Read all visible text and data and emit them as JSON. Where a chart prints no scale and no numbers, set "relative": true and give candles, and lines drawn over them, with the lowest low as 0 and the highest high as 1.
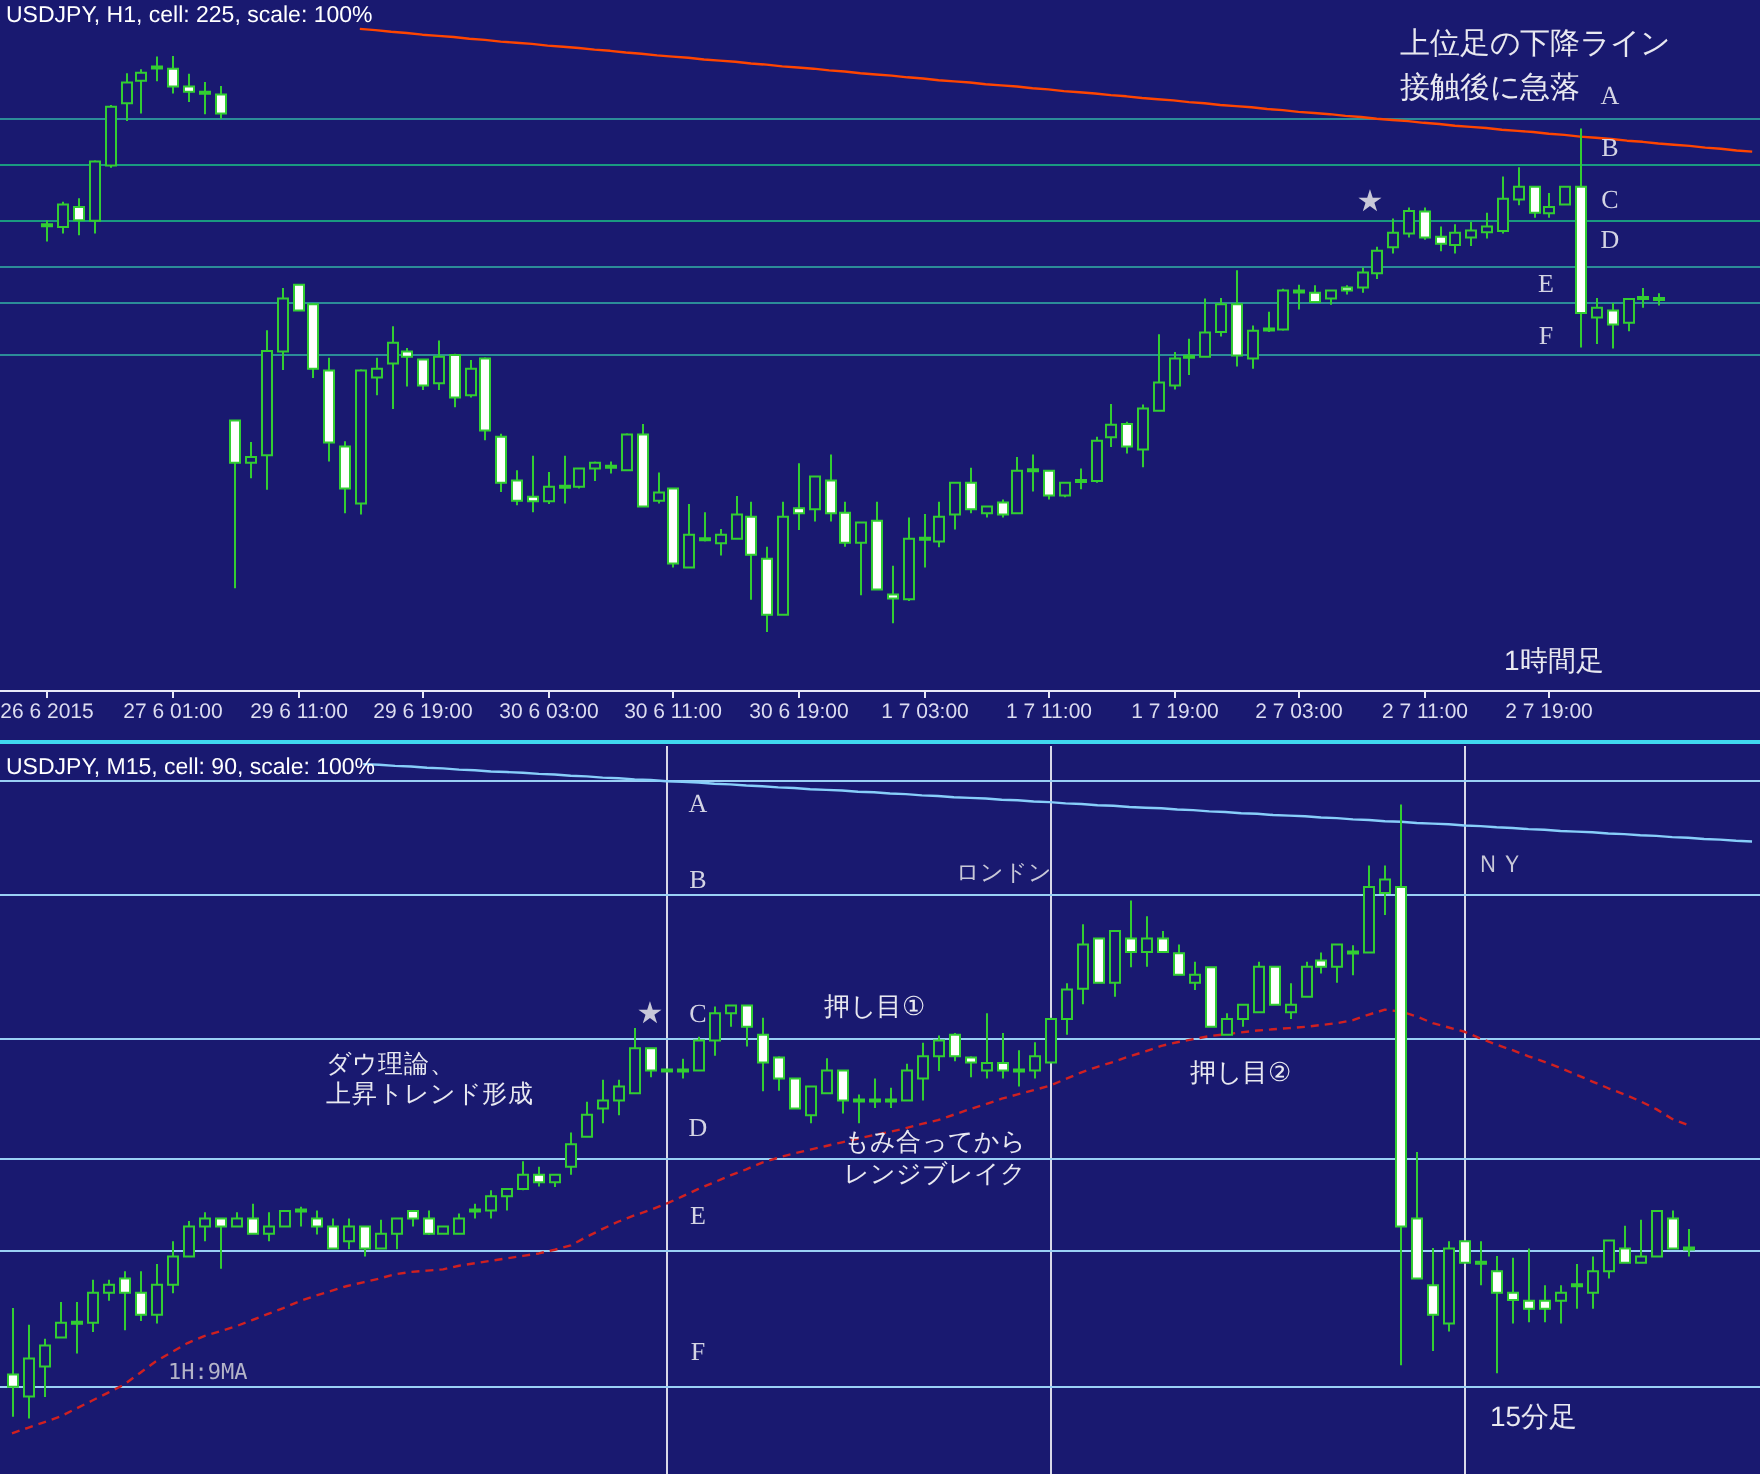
{
  "chart_data": [
    {
      "type": "candlestick",
      "title": "USDJPY, H1, cell: 225, scale: 100%",
      "relative": true,
      "tick_labels": "x",
      "categories": [
        "26 6 2015",
        null,
        null,
        null,
        null,
        null,
        null,
        null,
        "27 6 01:00",
        null,
        null,
        null,
        null,
        null,
        null,
        null,
        "29 6 11:00",
        null,
        null,
        null,
        null,
        null,
        null,
        null,
        "29 6 19:00",
        null,
        null,
        null,
        null,
        null,
        null,
        null,
        "30 6 03:00",
        null,
        null,
        null,
        null,
        null,
        null,
        null,
        "30 6 11:00",
        null,
        null,
        null,
        null,
        null,
        null,
        null,
        "30 6 19:00",
        null,
        null,
        null,
        null,
        null,
        null,
        null,
        "1 7 03:00",
        null,
        null,
        null,
        null,
        null,
        null,
        null,
        "1 7 11:00",
        null,
        null,
        null,
        null,
        null,
        null,
        null,
        "1 7 19:00",
        null,
        null,
        null,
        null,
        null,
        null,
        null,
        "2 7 03:00",
        null,
        null,
        null,
        null,
        null,
        null,
        null,
        "2 7 11:00",
        null,
        null,
        null,
        null,
        null,
        null,
        null,
        "2 7 19:00",
        null,
        null,
        null,
        null,
        null,
        null,
        null,
        null,
        null,
        null,
        null,
        null,
        null
      ],
      "series": [
        {
          "color": "#32cd32",
          "ohlc": [
            [
              0.706,
              0.715,
              0.678,
              0.706
            ],
            [
              0.703,
              0.747,
              0.692,
              0.742
            ],
            [
              0.738,
              0.753,
              0.689,
              0.715
            ],
            [
              0.714,
              0.819,
              0.692,
              0.817
            ],
            [
              0.81,
              0.915,
              0.806,
              0.912
            ],
            [
              0.918,
              0.97,
              0.887,
              0.954
            ],
            [
              0.957,
              0.977,
              0.9,
              0.971
            ],
            [
              0.979,
              0.999,
              0.956,
              0.981
            ],
            [
              0.978,
              1,
              0.935,
              0.947
            ],
            [
              0.947,
              0.969,
              0.92,
              0.938
            ],
            [
              0.936,
              0.955,
              0.899,
              0.936
            ],
            [
              0.933,
              0.948,
              0.891,
              0.9
            ],
            [
              0.367,
              0.367,
              0.076,
              0.294
            ],
            [
              0.294,
              0.33,
              0.267,
              0.304
            ],
            [
              0.307,
              0.524,
              0.247,
              0.488
            ],
            [
              0.487,
              0.597,
              0.455,
              0.579
            ],
            [
              0.603,
              0.604,
              0.557,
              0.558
            ],
            [
              0.569,
              0.571,
              0.441,
              0.457
            ],
            [
              0.454,
              0.476,
              0.296,
              0.329
            ],
            [
              0.322,
              0.331,
              0.206,
              0.249
            ],
            [
              0.223,
              0.456,
              0.204,
              0.454
            ],
            [
              0.442,
              0.476,
              0.411,
              0.457
            ],
            [
              0.466,
              0.531,
              0.387,
              0.502
            ],
            [
              0.487,
              0.493,
              0.426,
              0.478
            ],
            [
              0.473,
              0.475,
              0.42,
              0.428
            ],
            [
              0.432,
              0.506,
              0.42,
              0.478
            ],
            [
              0.481,
              0.483,
              0.39,
              0.407
            ],
            [
              0.411,
              0.472,
              0.407,
              0.457
            ],
            [
              0.475,
              0.477,
              0.333,
              0.35
            ],
            [
              0.339,
              0.344,
              0.243,
              0.259
            ],
            [
              0.263,
              0.281,
              0.22,
              0.228
            ],
            [
              0.235,
              0.306,
              0.208,
              0.227
            ],
            [
              0.227,
              0.278,
              0.222,
              0.252
            ],
            [
              0.252,
              0.306,
              0.223,
              0.252
            ],
            [
              0.252,
              0.285,
              0.249,
              0.284
            ],
            [
              0.284,
              0.296,
              0.262,
              0.294
            ],
            [
              0.287,
              0.296,
              0.275,
              0.287
            ],
            [
              0.281,
              0.345,
              0.279,
              0.343
            ],
            [
              0.343,
              0.361,
              0.216,
              0.218
            ],
            [
              0.228,
              0.277,
              0.223,
              0.242
            ],
            [
              0.249,
              0.25,
              0.112,
              0.119
            ],
            [
              0.112,
              0.222,
              0.111,
              0.169
            ],
            [
              0.161,
              0.208,
              0.157,
              0.161
            ],
            [
              0.154,
              0.179,
              0.133,
              0.169
            ],
            [
              0.162,
              0.236,
              0.161,
              0.204
            ],
            [
              0.2,
              0.226,
              0.056,
              0.134
            ],
            [
              0.127,
              0.148,
              0,
              0.03
            ],
            [
              0.03,
              0.226,
              0.029,
              0.2
            ],
            [
              0.215,
              0.293,
              0.177,
              0.206
            ],
            [
              0.213,
              0.271,
              0.192,
              0.27
            ],
            [
              0.263,
              0.308,
              0.192,
              0.206
            ],
            [
              0.207,
              0.226,
              0.148,
              0.155
            ],
            [
              0.155,
              0.191,
              0.064,
              0.19
            ],
            [
              0.193,
              0.226,
              0.073,
              0.074
            ],
            [
              0.065,
              0.115,
              0.015,
              0.058
            ],
            [
              0.057,
              0.199,
              0.054,
              0.162
            ],
            [
              0.162,
              0.205,
              0.112,
              0.162
            ],
            [
              0.157,
              0.226,
              0.147,
              0.2
            ],
            [
              0.204,
              0.26,
              0.178,
              0.259
            ],
            [
              0.259,
              0.285,
              0.206,
              0.213
            ],
            [
              0.206,
              0.219,
              0.199,
              0.218
            ],
            [
              0.225,
              0.23,
              0.199,
              0.204
            ],
            [
              0.206,
              0.304,
              0.205,
              0.28
            ],
            [
              0.281,
              0.308,
              0.244,
              0.281
            ],
            [
              0.28,
              0.281,
              0.23,
              0.237
            ],
            [
              0.237,
              0.26,
              0.234,
              0.259
            ],
            [
              0.262,
              0.284,
              0.248,
              0.262
            ],
            [
              0.262,
              0.339,
              0.259,
              0.332
            ],
            [
              0.338,
              0.396,
              0.321,
              0.36
            ],
            [
              0.361,
              0.365,
              0.31,
              0.322
            ],
            [
              0.317,
              0.395,
              0.286,
              0.388
            ],
            [
              0.384,
              0.517,
              0.383,
              0.433
            ],
            [
              0.428,
              0.486,
              0.421,
              0.475
            ],
            [
              0.478,
              0.509,
              0.446,
              0.478
            ],
            [
              0.478,
              0.579,
              0.476,
              0.52
            ],
            [
              0.521,
              0.58,
              0.513,
              0.569
            ],
            [
              0.569,
              0.628,
              0.461,
              0.48
            ],
            [
              0.475,
              0.532,
              0.457,
              0.523
            ],
            [
              0.525,
              0.556,
              0.521,
              0.525
            ],
            [
              0.525,
              0.596,
              0.523,
              0.593
            ],
            [
              0.591,
              0.603,
              0.56,
              0.591
            ],
            [
              0.589,
              0.602,
              0.571,
              0.573
            ],
            [
              0.579,
              0.594,
              0.568,
              0.593
            ],
            [
              0.598,
              0.602,
              0.586,
              0.593
            ],
            [
              0.598,
              0.633,
              0.589,
              0.624
            ],
            [
              0.623,
              0.669,
              0.613,
              0.662
            ],
            [
              0.668,
              0.718,
              0.657,
              0.693
            ],
            [
              0.692,
              0.737,
              0.685,
              0.731
            ],
            [
              0.73,
              0.737,
              0.681,
              0.685
            ],
            [
              0.686,
              0.704,
              0.661,
              0.674
            ],
            [
              0.672,
              0.708,
              0.657,
              0.693
            ],
            [
              0.685,
              0.712,
              0.67,
              0.697
            ],
            [
              0.694,
              0.728,
              0.683,
              0.704
            ],
            [
              0.696,
              0.791,
              0.692,
              0.752
            ],
            [
              0.751,
              0.807,
              0.741,
              0.773
            ],
            [
              0.773,
              0.774,
              0.719,
              0.728
            ],
            [
              0.727,
              0.762,
              0.719,
              0.738
            ],
            [
              0.742,
              0.774,
              0.741,
              0.773
            ],
            [
              0.773,
              0.874,
              0.494,
              0.554
            ],
            [
              0.546,
              0.58,
              0.5,
              0.563
            ],
            [
              0.558,
              0.571,
              0.492,
              0.534
            ],
            [
              0.537,
              0.579,
              0.522,
              0.578
            ],
            [
              0.58,
              0.597,
              0.563,
              0.58
            ],
            [
              0.578,
              0.588,
              0.567,
              0.578
            ],
            null,
            null,
            null,
            null,
            null,
            null
          ]
        },
        {
          "type": "line",
          "color": "#ff4500",
          "values": [
            null,
            null,
            null,
            null,
            null,
            null,
            null,
            null,
            null,
            null,
            null,
            null,
            null,
            null,
            null,
            null,
            null,
            null,
            null,
            null,
            1.047,
            1.045,
            1.042,
            1.04,
            1.037,
            1.035,
            1.033,
            1.03,
            1.028,
            1.025,
            1.023,
            1.021,
            1.018,
            1.016,
            1.014,
            1.011,
            1.009,
            1.006,
            1.004,
            1.001,
            0.999,
            0.997,
            0.994,
            0.992,
            0.99,
            0.987,
            0.985,
            0.982,
            0.98,
            0.978,
            0.975,
            0.973,
            0.97,
            0.968,
            0.966,
            0.963,
            0.961,
            0.958,
            0.956,
            0.954,
            0.951,
            0.949,
            0.947,
            0.944,
            0.942,
            0.939,
            0.937,
            0.935,
            0.932,
            0.93,
            0.927,
            0.925,
            0.923,
            0.92,
            0.918,
            0.915,
            0.913,
            0.911,
            0.908,
            0.906,
            0.903,
            0.901,
            0.899,
            0.896,
            0.894,
            0.891,
            0.889,
            0.887,
            0.884,
            0.882,
            0.879,
            0.877,
            0.875,
            0.872,
            0.87,
            0.868,
            0.865,
            0.863,
            0.86,
            0.858,
            0.856,
            0.853,
            0.851,
            0.848,
            0.846,
            0.844,
            0.841,
            0.839,
            0.836,
            0.834
          ]
        }
      ],
      "ref_lines": [
        {
          "axis": "y",
          "value": 0.891,
          "label": "A",
          "color": "#2c8c98"
        },
        {
          "axis": "y",
          "value": 0.811,
          "label": "B",
          "color": "#1a9a80"
        },
        {
          "axis": "y",
          "value": 0.714,
          "label": "C",
          "color": "#1a9a80"
        },
        {
          "axis": "y",
          "value": 0.634,
          "label": "D",
          "color": "#2c8c98"
        },
        {
          "axis": "y",
          "value": 0.572,
          "label": "E",
          "color": "#2c8c98"
        },
        {
          "axis": "y",
          "value": 0.481,
          "label": "F",
          "color": "#2c8c98"
        }
      ],
      "annotations": [
        "上位足の下降ライン",
        "接触後に急落",
        "1時間足",
        "★"
      ]
    },
    {
      "type": "candlestick",
      "title": "USDJPY, M15, cell: 90, scale: 100%",
      "relative": true,
      "tick_labels": false,
      "grid": "x",
      "categories": [
        null,
        null,
        null,
        null,
        null,
        null,
        null,
        null,
        null,
        null,
        null,
        null,
        null,
        null,
        null,
        null,
        null,
        null,
        null,
        null,
        null,
        null,
        null,
        null,
        null,
        null,
        null,
        null,
        null,
        null,
        null,
        null,
        null,
        null,
        null,
        null,
        null,
        null,
        null,
        null,
        null,
        null,
        null,
        null,
        null,
        null,
        null,
        null,
        null,
        null,
        null,
        null,
        null,
        null,
        null,
        null,
        null,
        null,
        null,
        null,
        null,
        null,
        null,
        null,
        null,
        null,
        null,
        null,
        null,
        null,
        null,
        null,
        null,
        null,
        null,
        null,
        null,
        null,
        null,
        null,
        null,
        null,
        null,
        null,
        null,
        null,
        null,
        null,
        null,
        null,
        null,
        null,
        null,
        null,
        null,
        null,
        null,
        null,
        null,
        null,
        null,
        null,
        null,
        null,
        null,
        null,
        null,
        null,
        null,
        null
      ],
      "series": [
        {
          "color": "#32cd32",
          "ohlc": [
            [
              0.072,
              0.18,
              0.003,
              0.052
            ],
            [
              0.036,
              0.153,
              0,
              0.098
            ],
            [
              0.085,
              0.13,
              0.035,
              0.119
            ],
            [
              0.132,
              0.19,
              0.131,
              0.156
            ],
            [
              0.156,
              0.19,
              0.106,
              0.156
            ],
            [
              0.156,
              0.226,
              0.141,
              0.205
            ],
            [
              0.205,
              0.226,
              0.192,
              0.218
            ],
            [
              0.228,
              0.24,
              0.144,
              0.205
            ],
            [
              0.205,
              0.24,
              0.159,
              0.169
            ],
            [
              0.169,
              0.252,
              0.155,
              0.218
            ],
            [
              0.218,
              0.289,
              0.204,
              0.264
            ],
            [
              0.264,
              0.322,
              0.263,
              0.313
            ],
            [
              0.313,
              0.336,
              0.289,
              0.326
            ],
            [
              0.326,
              0.327,
              0.244,
              0.313
            ],
            [
              0.313,
              0.336,
              0.312,
              0.326
            ],
            [
              0.326,
              0.35,
              0.3,
              0.301
            ],
            [
              0.301,
              0.336,
              0.289,
              0.313
            ],
            [
              0.313,
              0.339,
              0.312,
              0.338
            ],
            [
              0.339,
              0.345,
              0.313,
              0.339
            ],
            [
              0.326,
              0.339,
              0.3,
              0.313
            ],
            [
              0.313,
              0.326,
              0.276,
              0.277
            ],
            [
              0.289,
              0.326,
              0.276,
              0.313
            ],
            [
              0.313,
              0.314,
              0.264,
              0.277
            ],
            [
              0.277,
              0.324,
              0.276,
              0.301
            ],
            [
              0.301,
              0.327,
              0.276,
              0.326
            ],
            [
              0.338,
              0.339,
              0.313,
              0.326
            ],
            [
              0.326,
              0.339,
              0.299,
              0.301
            ],
            [
              0.301,
              0.313,
              0.301,
              0.313
            ],
            [
              0.301,
              0.334,
              0.3,
              0.326
            ],
            [
              0.339,
              0.35,
              0.326,
              0.339
            ],
            [
              0.339,
              0.372,
              0.326,
              0.362
            ],
            [
              0.362,
              0.375,
              0.339,
              0.374
            ],
            [
              0.374,
              0.419,
              0.372,
              0.397
            ],
            [
              0.397,
              0.41,
              0.378,
              0.385
            ],
            [
              0.385,
              0.398,
              0.377,
              0.397
            ],
            [
              0.41,
              0.466,
              0.397,
              0.447
            ],
            [
              0.459,
              0.516,
              0.458,
              0.495
            ],
            [
              0.505,
              0.552,
              0.481,
              0.518
            ],
            [
              0.518,
              0.552,
              0.494,
              0.541
            ],
            [
              0.53,
              0.636,
              0.529,
              0.603
            ],
            [
              0.603,
              0.604,
              0.556,
              0.567
            ],
            [
              0.567,
              0.568,
              0.566,
              0.567
            ],
            [
              0.567,
              0.586,
              0.554,
              0.567
            ],
            [
              0.567,
              0.622,
              0.566,
              0.616
            ],
            [
              0.616,
              0.671,
              0.591,
              0.66
            ],
            [
              0.66,
              0.674,
              0.638,
              0.673
            ],
            [
              0.673,
              0.674,
              0.606,
              0.638
            ],
            [
              0.625,
              0.653,
              0.533,
              0.58
            ],
            [
              0.588,
              0.59,
              0.534,
              0.554
            ],
            [
              0.554,
              0.555,
              0.504,
              0.505
            ],
            [
              0.494,
              0.542,
              0.481,
              0.541
            ],
            [
              0.53,
              0.587,
              0.529,
              0.567
            ],
            [
              0.567,
              0.568,
              0.497,
              0.518
            ],
            [
              0.518,
              0.528,
              0.481,
              0.518
            ],
            [
              0.518,
              0.554,
              0.506,
              0.518
            ],
            [
              0.518,
              0.539,
              0.506,
              0.518
            ],
            [
              0.518,
              0.578,
              0.517,
              0.567
            ],
            [
              0.554,
              0.612,
              0.518,
              0.59
            ],
            [
              0.59,
              0.624,
              0.566,
              0.616
            ],
            [
              0.625,
              0.628,
              0.582,
              0.59
            ],
            [
              0.588,
              0.59,
              0.556,
              0.58
            ],
            [
              0.567,
              0.66,
              0.554,
              0.579
            ],
            [
              0.579,
              0.628,
              0.554,
              0.567
            ],
            [
              0.567,
              0.6,
              0.541,
              0.567
            ],
            [
              0.567,
              0.613,
              0.554,
              0.59
            ],
            [
              0.58,
              0.653,
              0.579,
              0.651
            ],
            [
              0.651,
              0.709,
              0.625,
              0.699
            ],
            [
              0.7,
              0.805,
              0.675,
              0.772
            ],
            [
              0.782,
              0.783,
              0.709,
              0.71
            ],
            [
              0.71,
              0.795,
              0.687,
              0.794
            ],
            [
              0.782,
              0.844,
              0.735,
              0.76
            ],
            [
              0.76,
              0.818,
              0.736,
              0.782
            ],
            [
              0.782,
              0.794,
              0.759,
              0.76
            ],
            [
              0.758,
              0.772,
              0.722,
              0.723
            ],
            [
              0.71,
              0.744,
              0.698,
              0.723
            ],
            [
              0.735,
              0.736,
              0.637,
              0.638
            ],
            [
              0.625,
              0.66,
              0.624,
              0.651
            ],
            [
              0.651,
              0.675,
              0.638,
              0.674
            ],
            [
              0.662,
              0.744,
              0.661,
              0.736
            ],
            [
              0.736,
              0.737,
              0.673,
              0.674
            ],
            [
              0.662,
              0.709,
              0.651,
              0.674
            ],
            [
              0.687,
              0.744,
              0.686,
              0.736
            ],
            [
              0.746,
              0.759,
              0.725,
              0.736
            ],
            [
              0.736,
              0.773,
              0.71,
              0.772
            ],
            [
              0.759,
              0.771,
              0.722,
              0.759
            ],
            [
              0.759,
              0.901,
              0.758,
              0.866
            ],
            [
              0.856,
              0.901,
              0.82,
              0.878
            ],
            [
              0.866,
              1,
              0.087,
              0.313
            ],
            [
              0.326,
              0.434,
              0.227,
              0.228
            ],
            [
              0.217,
              0.278,
              0.11,
              0.169
            ],
            [
              0.155,
              0.289,
              0.142,
              0.277
            ],
            [
              0.289,
              0.29,
              0.253,
              0.254
            ],
            [
              0.254,
              0.289,
              0.217,
              0.254
            ],
            [
              0.24,
              0.265,
              0.074,
              0.205
            ],
            [
              0.205,
              0.262,
              0.155,
              0.193
            ],
            [
              0.192,
              0.277,
              0.157,
              0.179
            ],
            [
              0.192,
              0.217,
              0.157,
              0.179
            ],
            [
              0.192,
              0.217,
              0.155,
              0.205
            ],
            [
              0.217,
              0.252,
              0.179,
              0.217
            ],
            [
              0.205,
              0.264,
              0.179,
              0.24
            ],
            [
              0.24,
              0.291,
              0.228,
              0.29
            ],
            [
              0.277,
              0.314,
              0.253,
              0.254
            ],
            [
              0.254,
              0.324,
              0.253,
              0.264
            ],
            [
              0.264,
              0.339,
              0.263,
              0.338
            ],
            [
              0.326,
              0.339,
              0.276,
              0.277
            ],
            [
              0.277,
              0.309,
              0.264,
              0.277
            ],
            null,
            null,
            null,
            null
          ]
        },
        {
          "type": "line",
          "color": "#87cefa",
          "values": [
            null,
            null,
            null,
            null,
            null,
            null,
            null,
            null,
            null,
            null,
            null,
            null,
            null,
            null,
            null,
            null,
            null,
            null,
            null,
            null,
            null,
            null,
            1.066,
            1.065,
            1.063,
            1.062,
            1.06,
            1.059,
            1.057,
            1.056,
            1.054,
            1.053,
            1.052,
            1.05,
            1.049,
            1.047,
            1.046,
            1.044,
            1.043,
            1.041,
            1.04,
            1.038,
            1.037,
            1.036,
            1.034,
            1.033,
            1.031,
            1.03,
            1.028,
            1.027,
            1.025,
            1.024,
            1.023,
            1.021,
            1.02,
            1.018,
            1.017,
            1.015,
            1.014,
            1.012,
            1.011,
            1.01,
            1.008,
            1.007,
            1.005,
            1.004,
            1.002,
            1.001,
            0.999,
            0.998,
            0.996,
            0.995,
            0.994,
            0.992,
            0.991,
            0.989,
            0.988,
            0.986,
            0.985,
            0.983,
            0.982,
            0.981,
            0.979,
            0.978,
            0.976,
            0.975,
            0.973,
            0.972,
            0.97,
            0.969,
            0.968,
            0.966,
            0.965,
            0.963,
            0.962,
            0.96,
            0.959,
            0.957,
            0.956,
            0.955,
            0.953,
            0.952,
            0.95,
            0.949,
            0.947,
            0.946,
            0.944,
            0.943,
            0.941,
            0.94
          ]
        },
        {
          "type": "line",
          "name": "1H:9MA",
          "color": "#d02020",
          "line_style": "dashed",
          "values": [
            -0.024,
            -0.015,
            -0.006,
            0.003,
            0.016,
            0.029,
            0.042,
            0.055,
            0.074,
            0.093,
            0.108,
            0.123,
            0.134,
            0.142,
            0.15,
            0.16,
            0.17,
            0.18,
            0.191,
            0.2,
            0.208,
            0.216,
            0.222,
            0.228,
            0.235,
            0.239,
            0.241,
            0.243,
            0.249,
            0.253,
            0.257,
            0.261,
            0.265,
            0.269,
            0.275,
            0.282,
            0.296,
            0.309,
            0.321,
            0.331,
            0.34,
            0.35,
            0.362,
            0.374,
            0.385,
            0.396,
            0.406,
            0.417,
            0.425,
            0.432,
            0.438,
            0.444,
            0.45,
            0.456,
            0.462,
            0.467,
            0.473,
            0.48,
            0.486,
            0.495,
            0.504,
            0.512,
            0.521,
            0.528,
            0.535,
            0.542,
            0.553,
            0.564,
            0.573,
            0.581,
            0.59,
            0.598,
            0.607,
            0.613,
            0.618,
            0.623,
            0.626,
            0.629,
            0.632,
            0.634,
            0.636,
            0.638,
            0.641,
            0.644,
            0.649,
            0.658,
            0.666,
            0.663,
            0.655,
            0.644,
            0.637,
            0.63,
            0.619,
            0.609,
            0.6,
            0.59,
            0.581,
            0.571,
            0.56,
            0.549,
            0.538,
            0.528,
            0.517,
            0.504,
            0.488,
            0.478,
            null,
            null,
            null,
            null
          ]
        }
      ],
      "ref_lines": [
        {
          "axis": "y",
          "value": 1.041,
          "label": "A",
          "color": "#9ad0f5"
        },
        {
          "axis": "y",
          "value": 0.853,
          "label": "B",
          "color": "#9ad0f5"
        },
        {
          "axis": "y",
          "value": 0.619,
          "label": "C",
          "color": "#9ad0f5"
        },
        {
          "axis": "y",
          "value": 0.423,
          "label": "D",
          "color": "#9ad0f5"
        },
        {
          "axis": "y",
          "value": 0.274,
          "label": "E",
          "color": "#9ad0f5"
        },
        {
          "axis": "y",
          "value": 0.052,
          "label": "F",
          "color": "#9ad0f5"
        }
      ],
      "annotations": [
        "★",
        "ダウ理論、",
        "上昇トレンド形成",
        "押し目①",
        "押し目②",
        "もみ合ってから",
        "レンジブレイク",
        "ロンドン",
        "ＮＹ",
        "15分足"
      ]
    }
  ]
}
